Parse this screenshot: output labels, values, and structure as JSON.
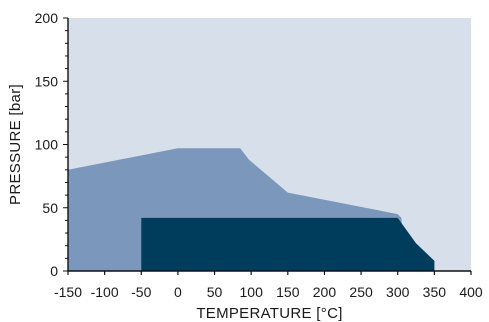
{
  "chart_data": {
    "type": "area",
    "title": "",
    "xlabel": "TEMPERATURE [°C]",
    "ylabel": "PRESSURE [bar]",
    "xlim": [
      -150,
      400
    ],
    "ylim": [
      0,
      200
    ],
    "x_ticks": [
      -150,
      -100,
      -50,
      0,
      50,
      100,
      150,
      200,
      250,
      300,
      350,
      400
    ],
    "y_ticks": [
      0,
      50,
      100,
      150,
      200
    ],
    "grid": false,
    "legend": "none",
    "background_color": "#d6dfea",
    "series": [
      {
        "color": "#7b98bc",
        "points": [
          [
            -150,
            80
          ],
          [
            0,
            97
          ],
          [
            85,
            97
          ],
          [
            97,
            88
          ],
          [
            150,
            62
          ],
          [
            300,
            45
          ],
          [
            305,
            42
          ],
          [
            310,
            0
          ],
          [
            -150,
            0
          ]
        ]
      },
      {
        "color": "#003c5c",
        "points": [
          [
            -50,
            42
          ],
          [
            300,
            42
          ],
          [
            325,
            22
          ],
          [
            350,
            8
          ],
          [
            350,
            0
          ],
          [
            -50,
            0
          ]
        ]
      }
    ]
  }
}
